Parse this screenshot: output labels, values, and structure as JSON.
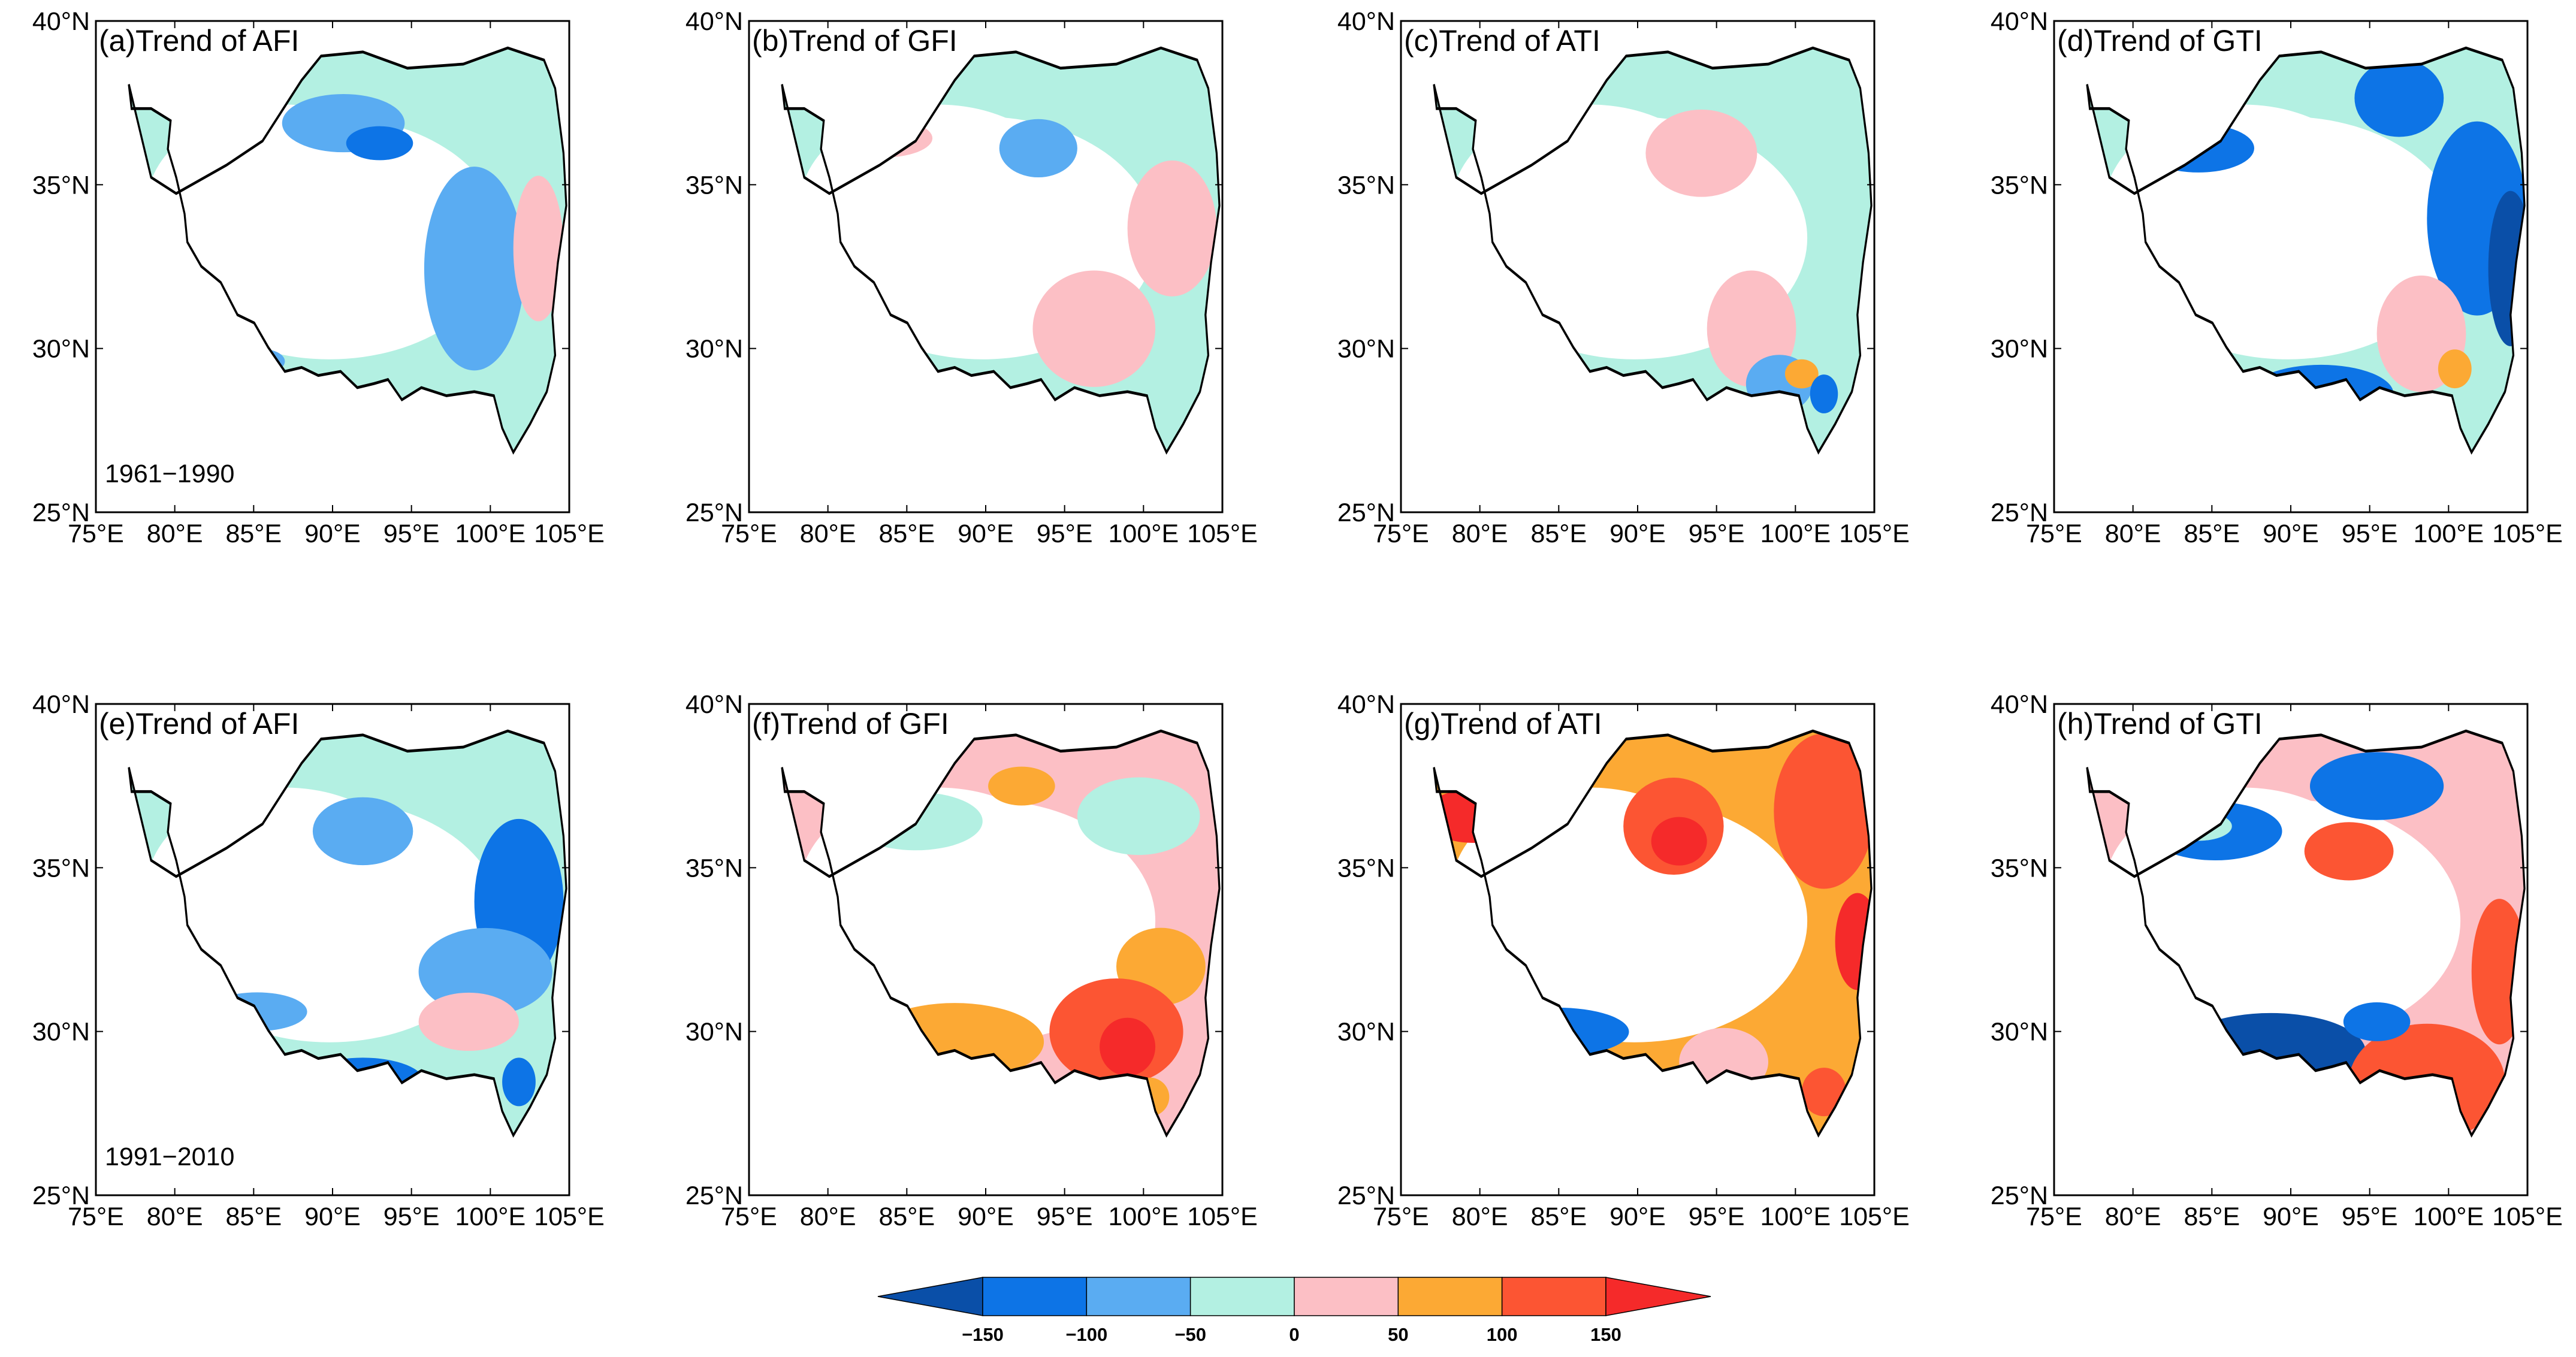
{
  "figure": {
    "panels": [
      {
        "title": "(a)Trend of AFI",
        "period": "1961−1990",
        "scheme": "a"
      },
      {
        "title": "(b)Trend of GFI",
        "period": "",
        "scheme": "b"
      },
      {
        "title": "(c)Trend of ATI",
        "period": "",
        "scheme": "c"
      },
      {
        "title": "(d)Trend of GTI",
        "period": "",
        "scheme": "d"
      },
      {
        "title": "(e)Trend of AFI",
        "period": "1991−2010",
        "scheme": "e"
      },
      {
        "title": "(f)Trend of GFI",
        "period": "",
        "scheme": "f"
      },
      {
        "title": "(g)Trend of ATI",
        "period": "",
        "scheme": "g"
      },
      {
        "title": "(h)Trend of GTI",
        "period": "",
        "scheme": "h"
      }
    ],
    "x_ticks": [
      "75°E",
      "80°E",
      "85°E",
      "90°E",
      "95°E",
      "100°E",
      "105°E"
    ],
    "y_ticks": [
      "40°N",
      "35°N",
      "30°N",
      "25°N"
    ],
    "lon_range": [
      75,
      105
    ],
    "lat_range": [
      25,
      40
    ]
  },
  "colorbar": {
    "ticks": [
      "−150",
      "−100",
      "−50",
      "0",
      "50",
      "100",
      "150"
    ],
    "colors": [
      "#0a4fa8",
      "#0d74e6",
      "#5aacf2",
      "#b3f0e2",
      "#fcbfc5",
      "#fca934",
      "#fc5533",
      "#f52a2a"
    ]
  }
}
